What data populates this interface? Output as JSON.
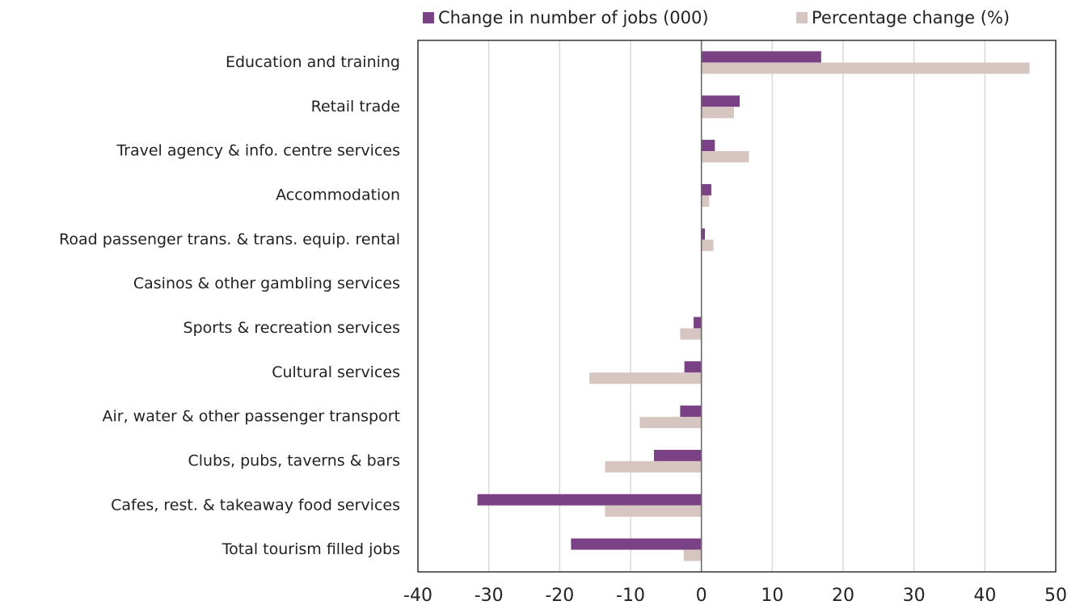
{
  "chart_data": {
    "type": "hbar",
    "categories": [
      "Education and training",
      "Retail trade",
      "Travel agency & info. centre services",
      "Accommodation",
      "Road passenger trans. & trans. equip. rental",
      "Casinos & other gambling services",
      "Sports & recreation services",
      "Cultural services",
      "Air, water & other passenger transport",
      "Clubs, pubs, taverns & bars",
      "Cafes, rest. & takeaway food services",
      "Total tourism filled jobs"
    ],
    "series": [
      {
        "name": "Change in number of jobs (000)",
        "color": "#7a4285",
        "values": [
          16.9,
          5.4,
          1.9,
          1.4,
          0.5,
          0,
          -1.1,
          -2.4,
          -3.0,
          -6.7,
          -31.6,
          -18.4
        ]
      },
      {
        "name": "Percentage change (%)",
        "color": "#d6c5c1",
        "values": [
          46.3,
          4.6,
          6.7,
          1.1,
          1.7,
          0,
          -3.0,
          -15.8,
          -8.7,
          -13.6,
          -13.6,
          -2.5
        ]
      }
    ],
    "xlim": [
      -40,
      50
    ],
    "xticks": [
      -40,
      -30,
      -20,
      -10,
      0,
      10,
      20,
      30,
      40,
      50
    ],
    "grid": true,
    "legend": "top"
  }
}
